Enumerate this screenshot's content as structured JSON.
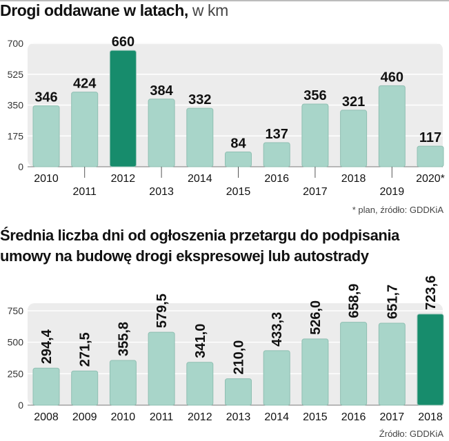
{
  "colors": {
    "bar": "#a8d5c9",
    "bar_highlight": "#178c6c",
    "bar_stroke": "#8fbfb2",
    "panel": "#ececec",
    "gridline": "#ffffff",
    "text": "#111111"
  },
  "chart1": {
    "title": "Drogi oddawane w latach,",
    "title_unit": "w km",
    "note": "* plan, źródło: GDDKiA"
  },
  "chart2": {
    "title_line1": "Średnia liczba dni od ogłoszenia przetargu do podpisania",
    "title_line2": "umowy na budowę drogi ekspresowej lub autostrady",
    "note": "Źródło: GDDKiA"
  },
  "chart_data": [
    {
      "type": "bar",
      "title": "Drogi oddawane w latach, w km",
      "xlabel": "",
      "ylabel": "km",
      "categories": [
        "2010",
        "2011",
        "2012",
        "2013",
        "2014",
        "2015",
        "2016",
        "2017",
        "2018",
        "2019",
        "2020*"
      ],
      "values": [
        346,
        424,
        660,
        384,
        332,
        84,
        137,
        356,
        321,
        460,
        117
      ],
      "value_labels": [
        "346",
        "424",
        "660",
        "384",
        "332",
        "84",
        "137",
        "356",
        "321",
        "460",
        "117"
      ],
      "highlight_index": 2,
      "ylim": [
        0,
        700
      ],
      "yticks": [
        0,
        175,
        350,
        525,
        700
      ],
      "label_orientation": "horizontal",
      "x_labels_staggered": true,
      "grid": true
    },
    {
      "type": "bar",
      "title": "Średnia liczba dni od ogłoszenia przetargu do podpisania umowy na budowę drogi ekspresowej lub autostrady",
      "xlabel": "",
      "ylabel": "dni",
      "categories": [
        "2008",
        "2009",
        "2010",
        "2011",
        "2012",
        "2013",
        "2014",
        "2015",
        "2016",
        "2017",
        "2018"
      ],
      "values": [
        294.4,
        271.5,
        355.8,
        579.5,
        341.0,
        210.0,
        433.3,
        526.0,
        658.9,
        651.7,
        723.6
      ],
      "value_labels": [
        "294,4",
        "271,5",
        "355,8",
        "579,5",
        "341,0",
        "210,0",
        "433,3",
        "526,0",
        "658,9",
        "651,7",
        "723,6"
      ],
      "highlight_index": 10,
      "ylim": [
        0,
        750
      ],
      "yticks": [
        0,
        250,
        500,
        750
      ],
      "label_orientation": "vertical",
      "x_labels_staggered": false,
      "grid": true
    }
  ]
}
